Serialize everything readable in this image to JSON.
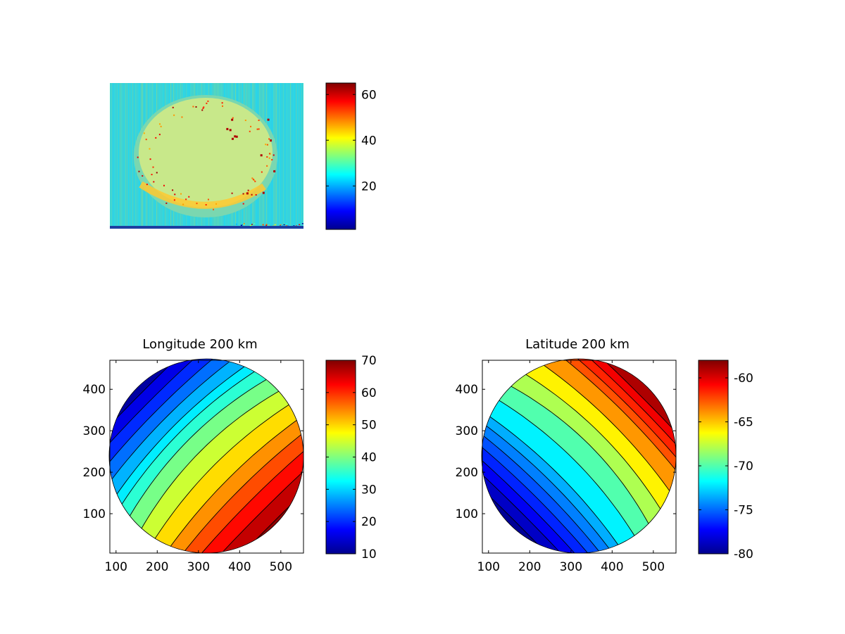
{
  "colormap": [
    "#00008f",
    "#0000ff",
    "#0080ff",
    "#00ffff",
    "#80ff80",
    "#ffff00",
    "#ff8000",
    "#ff0000",
    "#800000"
  ],
  "chart_data": [
    {
      "type": "heatmap",
      "title": "",
      "xlabel": "",
      "ylabel": "",
      "axes_visible": false,
      "description_values": {
        "background_level": 30,
        "disk_level": 40,
        "limb_arc_level": 46,
        "hot_pixel_level": 62
      },
      "colorbar": {
        "range": [
          1,
          65
        ],
        "ticks": [
          20,
          40,
          60
        ],
        "tick_labels": [
          "20",
          "40",
          "60"
        ]
      }
    },
    {
      "type": "heatmap",
      "title": "Longitude 200 km",
      "xlabel": "",
      "ylabel": "",
      "xlim": [
        85,
        555
      ],
      "ylim": [
        5,
        470
      ],
      "xticks": [
        100,
        200,
        300,
        400,
        500
      ],
      "xtick_labels": [
        "100",
        "200",
        "300",
        "400",
        "500"
      ],
      "yticks": [
        100,
        200,
        300,
        400
      ],
      "ytick_labels": [
        "100",
        "200",
        "300",
        "400"
      ],
      "disk": {
        "center": [
          290,
          240
        ],
        "radius": 235
      },
      "gradient_direction": "upper-left to lower-right",
      "value_range": [
        10,
        70
      ],
      "contour_levels": [
        14,
        18,
        22,
        26,
        30,
        33,
        37,
        42,
        47,
        52,
        56,
        60,
        64,
        68
      ],
      "grid": false,
      "colorbar": {
        "range": [
          10,
          70
        ],
        "ticks": [
          10,
          20,
          30,
          40,
          50,
          60,
          70
        ],
        "tick_labels": [
          "10",
          "20",
          "30",
          "40",
          "50",
          "60",
          "70"
        ]
      }
    },
    {
      "type": "heatmap",
      "title": "Latitude 200 km",
      "xlabel": "",
      "ylabel": "",
      "xlim": [
        85,
        555
      ],
      "ylim": [
        5,
        470
      ],
      "xticks": [
        100,
        200,
        300,
        400,
        500
      ],
      "xtick_labels": [
        "100",
        "200",
        "300",
        "400",
        "500"
      ],
      "yticks": [
        100,
        200,
        300,
        400
      ],
      "ytick_labels": [
        "100",
        "200",
        "300",
        "400"
      ],
      "disk": {
        "center": [
          320,
          240
        ],
        "radius": 235
      },
      "gradient_direction": "lower-left to upper-right",
      "value_range": [
        -80,
        -58
      ],
      "contour_levels": [
        -79,
        -78,
        -77,
        -76,
        -75,
        -74,
        -73,
        -71,
        -69,
        -67,
        -65,
        -63,
        -62,
        -61,
        -60
      ],
      "grid": false,
      "colorbar": {
        "range": [
          -80,
          -58
        ],
        "ticks": [
          -80,
          -75,
          -70,
          -65,
          -60
        ],
        "tick_labels": [
          "-80",
          "-75",
          "-70",
          "-65",
          "-60"
        ]
      }
    }
  ]
}
